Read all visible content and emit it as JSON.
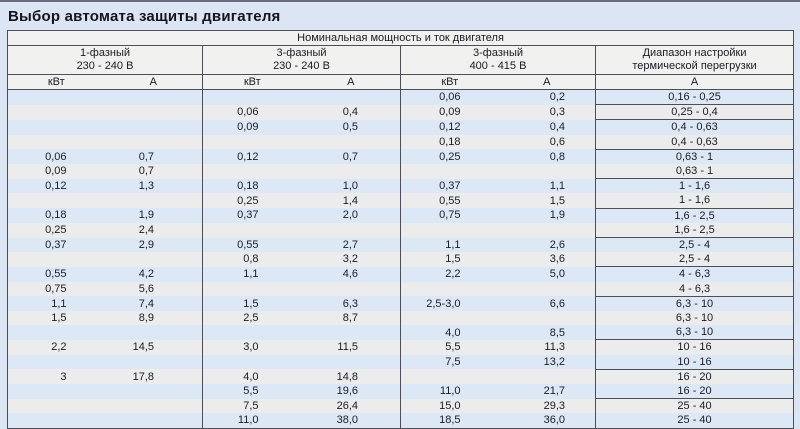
{
  "page": {
    "title": "Выбор автомата защиты двигателя"
  },
  "table": {
    "top_header": "Номинальная мощность и ток двигателя",
    "sections": [
      {
        "line1": "1-фазный",
        "line2": "230 - 240 В",
        "col1": "кВт",
        "col2": "А"
      },
      {
        "line1": "3-фазный",
        "line2": "230 - 240 В",
        "col1": "кВт",
        "col2": "А"
      },
      {
        "line1": "3-фазный",
        "line2": "400 - 415 В",
        "col1": "кВт",
        "col2": "А"
      },
      {
        "line1": "Диапазон настройки",
        "line2": "термической перегрузки",
        "col1": "А"
      }
    ],
    "rows": [
      {
        "c": [
          "",
          "",
          "",
          "",
          "0,06",
          "0,2",
          "0,16 - 0,25"
        ],
        "group_end": true
      },
      {
        "c": [
          "",
          "",
          "0,06",
          "0,4",
          "0,09",
          "0,3",
          "0,25 - 0,4"
        ],
        "group_end": true
      },
      {
        "c": [
          "",
          "",
          "0,09",
          "0,5",
          "0,12",
          "0,4",
          "0,4 - 0,63"
        ],
        "group_end": false
      },
      {
        "c": [
          "",
          "",
          "",
          "",
          "0,18",
          "0,6",
          "0,4 - 0,63"
        ],
        "group_end": true
      },
      {
        "c": [
          "0,06",
          "0,7",
          "0,12",
          "0,7",
          "0,25",
          "0,8",
          "0,63 - 1"
        ],
        "group_end": false
      },
      {
        "c": [
          "0,09",
          "0,7",
          "",
          "",
          "",
          "",
          "0,63 - 1"
        ],
        "group_end": true
      },
      {
        "c": [
          "0,12",
          "1,3",
          "0,18",
          "1,0",
          "0,37",
          "1,1",
          "1 - 1,6"
        ],
        "group_end": false
      },
      {
        "c": [
          "",
          "",
          "0,25",
          "1,4",
          "0,55",
          "1,5",
          "1 - 1,6"
        ],
        "group_end": true
      },
      {
        "c": [
          "0,18",
          "1,9",
          "0,37",
          "2,0",
          "0,75",
          "1,9",
          "1,6 - 2,5"
        ],
        "group_end": false
      },
      {
        "c": [
          "0,25",
          "2,4",
          "",
          "",
          "",
          "",
          "1,6 - 2,5"
        ],
        "group_end": true
      },
      {
        "c": [
          "0,37",
          "2,9",
          "0,55",
          "2,7",
          "1,1",
          "2,6",
          "2,5 - 4"
        ],
        "group_end": false
      },
      {
        "c": [
          "",
          "",
          "0,8",
          "3,2",
          "1,5",
          "3,6",
          "2,5 - 4"
        ],
        "group_end": true
      },
      {
        "c": [
          "0,55",
          "4,2",
          "1,1",
          "4,6",
          "2,2",
          "5,0",
          "4 - 6,3"
        ],
        "group_end": false
      },
      {
        "c": [
          "0,75",
          "5,6",
          "",
          "",
          "",
          "",
          "4 - 6,3"
        ],
        "group_end": true
      },
      {
        "c": [
          "1,1",
          "7,4",
          "1,5",
          "6,3",
          "2,5-3,0",
          "6,6",
          "6,3 - 10"
        ],
        "group_end": false
      },
      {
        "c": [
          "1,5",
          "8,9",
          "2,5",
          "8,7",
          "",
          "",
          "6,3 - 10"
        ],
        "group_end": false
      },
      {
        "c": [
          "",
          "",
          "",
          "",
          "4,0",
          "8,5",
          "6,3 - 10"
        ],
        "group_end": true
      },
      {
        "c": [
          "2,2",
          "14,5",
          "3,0",
          "11,5",
          "5,5",
          "11,3",
          "10 - 16"
        ],
        "group_end": false
      },
      {
        "c": [
          "",
          "",
          "",
          "",
          "7,5",
          "13,2",
          "10 - 16"
        ],
        "group_end": true
      },
      {
        "c": [
          "3",
          "17,8",
          "4,0",
          "14,8",
          "",
          "",
          "16 - 20"
        ],
        "group_end": false
      },
      {
        "c": [
          "",
          "",
          "5,5",
          "19,6",
          "11,0",
          "21,7",
          "16 - 20"
        ],
        "group_end": true
      },
      {
        "c": [
          "",
          "",
          "7,5",
          "26,4",
          "15,0",
          "29,3",
          "25 - 40"
        ],
        "group_end": false
      },
      {
        "c": [
          "",
          "",
          "11,0",
          "38,0",
          "18,5",
          "36,0",
          "25 - 40"
        ],
        "group_end": true
      }
    ]
  },
  "colors": {
    "page_bg": "#dbe5f3",
    "top_bar": "#6b6c80",
    "header_bg": "#f1f1ef",
    "stripe_blue": "#dde8f6",
    "stripe_gray": "#ececec",
    "border": "#4d4e57",
    "text": "#1b1b26"
  }
}
